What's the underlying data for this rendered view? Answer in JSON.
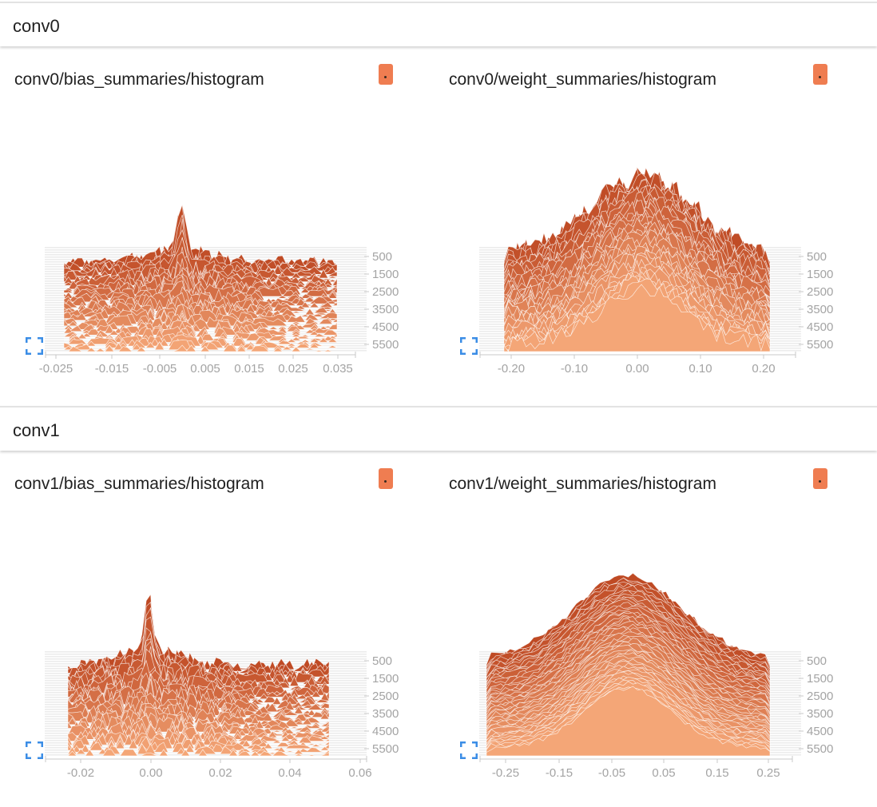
{
  "groups": [
    {
      "title": "conv0",
      "cards": [
        {
          "title": "conv0/bias_summaries/histogram",
          "x_ticks": [
            "-0.025",
            "-0.015",
            "-0.005",
            "0.005",
            "0.015",
            "0.025",
            "0.035"
          ],
          "y_ticks": [
            "500",
            "1500",
            "2500",
            "3500",
            "4500",
            "5500"
          ]
        },
        {
          "title": "conv0/weight_summaries/histogram",
          "x_ticks": [
            "-0.20",
            "-0.10",
            "0.00",
            "0.10",
            "0.20"
          ],
          "y_ticks": [
            "500",
            "1500",
            "2500",
            "3500",
            "4500",
            "5500"
          ]
        }
      ]
    },
    {
      "title": "conv1",
      "cards": [
        {
          "title": "conv1/bias_summaries/histogram",
          "x_ticks": [
            "-0.02",
            "0.00",
            "0.02",
            "0.04",
            "0.06"
          ],
          "y_ticks": [
            "500",
            "1500",
            "2500",
            "3500",
            "4500",
            "5500"
          ]
        },
        {
          "title": "conv1/weight_summaries/histogram",
          "x_ticks": [
            "-0.25",
            "-0.15",
            "-0.05",
            "0.05",
            "0.15",
            "0.25"
          ],
          "y_ticks": [
            "500",
            "1500",
            "2500",
            "3500",
            "4500",
            "5500"
          ]
        }
      ]
    }
  ],
  "chart_data": [
    {
      "type": "area",
      "title": "conv0/bias_summaries/histogram",
      "xlim": [
        -0.03,
        0.04
      ],
      "ylim": [
        0,
        6000
      ],
      "peak_x": -0.003,
      "distribution": "sparse-multimodal"
    },
    {
      "type": "area",
      "title": "conv0/weight_summaries/histogram",
      "xlim": [
        -0.25,
        0.25
      ],
      "ylim": [
        0,
        6000
      ],
      "peak_x": 0.02,
      "distribution": "broad-jagged"
    },
    {
      "type": "area",
      "title": "conv1/bias_summaries/histogram",
      "xlim": [
        -0.03,
        0.06
      ],
      "ylim": [
        0,
        6000
      ],
      "peak_x": 0.0,
      "distribution": "sparse-multimodal"
    },
    {
      "type": "area",
      "title": "conv1/weight_summaries/histogram",
      "xlim": [
        -0.3,
        0.3
      ],
      "ylim": [
        0,
        6000
      ],
      "peak_x": 0.0,
      "distribution": "smooth-bell"
    }
  ],
  "colors": {
    "back": "#bf4a24",
    "front": "#f4a677",
    "button": "#ef7d51",
    "fullscreen": "#3b8de6",
    "tick": "#a4a4a4"
  }
}
